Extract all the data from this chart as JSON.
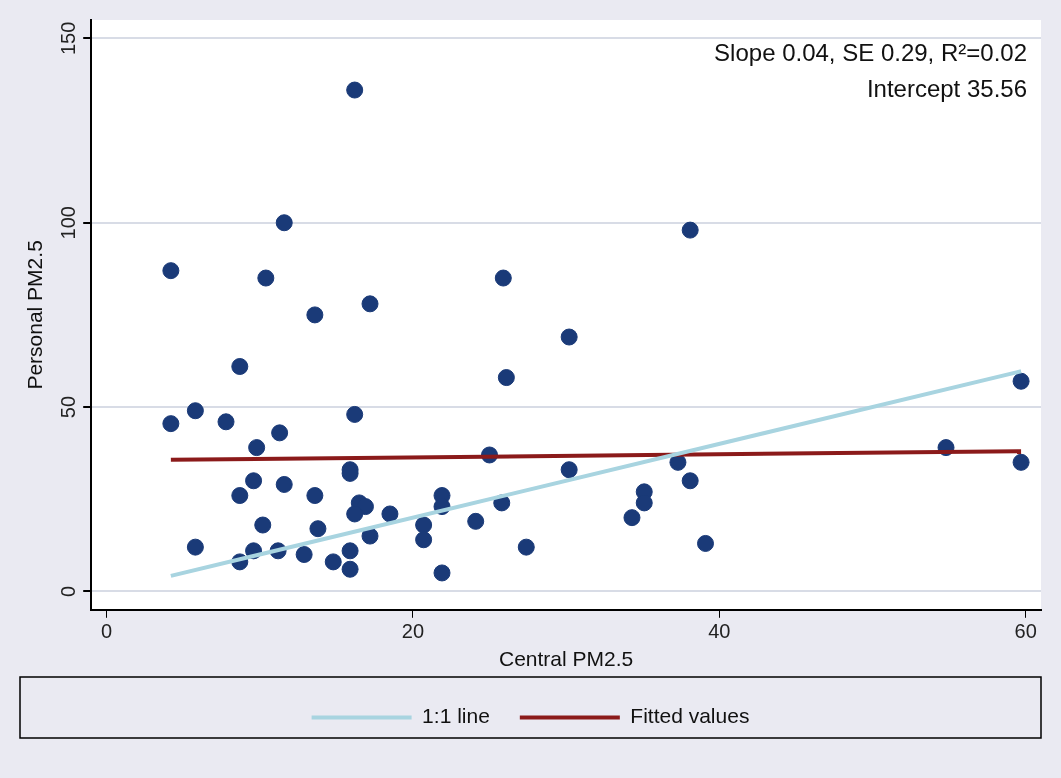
{
  "chart_data": {
    "type": "scatter",
    "xlabel": "Central PM2.5",
    "ylabel": "Personal PM2.5",
    "xlim": [
      -1,
      61
    ],
    "xticks": [
      0,
      20,
      40,
      60
    ],
    "ylim": [
      -5,
      155
    ],
    "yticks": [
      0,
      50,
      100,
      150
    ],
    "grid": "y",
    "legend": "bottom",
    "annotations": [
      "Slope 0.04, SE 0.29, R²=0.02",
      "Intercept 35.56"
    ],
    "series": [
      {
        "color": "#1a3a78",
        "marker": "circle",
        "x": [
          16.2,
          11.6,
          4.2,
          10.4,
          13.6,
          17.2,
          25.9,
          30.2,
          38.1,
          8.7,
          26.1,
          59.7,
          4.2,
          5.8,
          7.8,
          11.3,
          9.8,
          16.2,
          15.9,
          15.9,
          25.0,
          30.2,
          37.3,
          54.8,
          59.7,
          9.6,
          11.6,
          13.6,
          8.7,
          16.5,
          16.9,
          16.2,
          18.5,
          21.9,
          21.9,
          25.8,
          24.1,
          10.2,
          13.8,
          20.7,
          20.7,
          17.2,
          5.8,
          8.7,
          9.6,
          11.2,
          12.9,
          14.8,
          15.9,
          15.9,
          21.9,
          27.4,
          38.1,
          35.1,
          35.1,
          34.3,
          39.1
        ],
        "values": [
          136,
          100,
          87,
          85,
          75,
          78,
          85,
          69,
          98,
          61,
          58,
          57,
          45.5,
          49,
          46,
          43,
          39,
          48,
          33,
          32,
          37,
          33,
          35,
          39,
          35,
          30,
          29,
          26,
          26,
          24,
          23,
          21,
          21,
          26,
          23,
          24,
          19,
          18,
          17,
          18,
          14,
          15,
          12,
          8,
          11,
          11,
          10,
          8,
          11,
          6,
          5,
          12,
          30,
          27,
          24,
          20,
          13
        ]
      },
      {
        "type": "line",
        "name": "1:1 line",
        "color": "#a8d4e0",
        "x": [
          4.2,
          59.7
        ],
        "values": [
          4.2,
          59.7
        ]
      },
      {
        "type": "line",
        "name": "Fitted values",
        "color": "#8b1a1a",
        "x": [
          4.2,
          59.7
        ],
        "values": [
          35.7,
          38.0
        ]
      }
    ]
  }
}
